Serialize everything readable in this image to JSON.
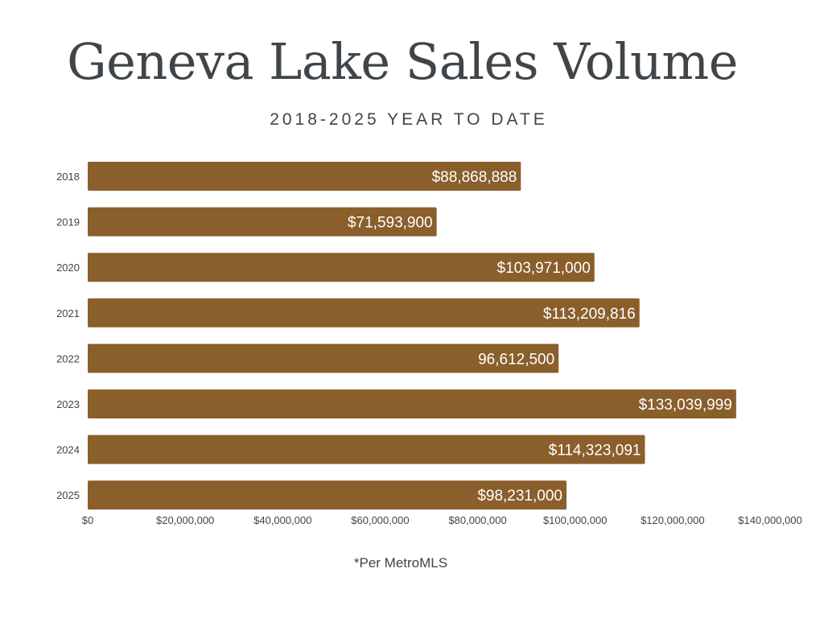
{
  "title": "Geneva Lake Sales Volume",
  "subtitle": "2018-2025 YEAR TO DATE",
  "footnote": "*Per MetroMLS",
  "colors": {
    "bar": "#8a5f2c",
    "bar_label": "#ffffff",
    "text": "#3f4549"
  },
  "chart_data": {
    "type": "bar",
    "orientation": "horizontal",
    "title": "Geneva Lake Sales Volume",
    "subtitle": "2018-2025 YEAR TO DATE",
    "xlabel": "",
    "ylabel": "",
    "xlim": [
      0,
      140000000
    ],
    "grid": false,
    "x_ticks": [
      {
        "value": 0,
        "label": "$0"
      },
      {
        "value": 20000000,
        "label": "$20,000,000"
      },
      {
        "value": 40000000,
        "label": "$40,000,000"
      },
      {
        "value": 60000000,
        "label": "$60,000,000"
      },
      {
        "value": 80000000,
        "label": "$80,000,000"
      },
      {
        "value": 100000000,
        "label": "$100,000,000"
      },
      {
        "value": 120000000,
        "label": "$120,000,000"
      },
      {
        "value": 140000000,
        "label": "$140,000,000"
      }
    ],
    "categories": [
      "2018",
      "2019",
      "2020",
      "2021",
      "2022",
      "2023",
      "2024",
      "2025"
    ],
    "values": [
      88868888,
      71593900,
      103971000,
      113209816,
      96612500,
      133039999,
      114323091,
      98231000
    ],
    "data_labels": [
      "$88,868,888",
      "$71,593,900",
      "$103,971,000",
      "$113,209,816",
      "96,612,500",
      "$133,039,999",
      "$114,323,091",
      "$98,231,000"
    ]
  }
}
